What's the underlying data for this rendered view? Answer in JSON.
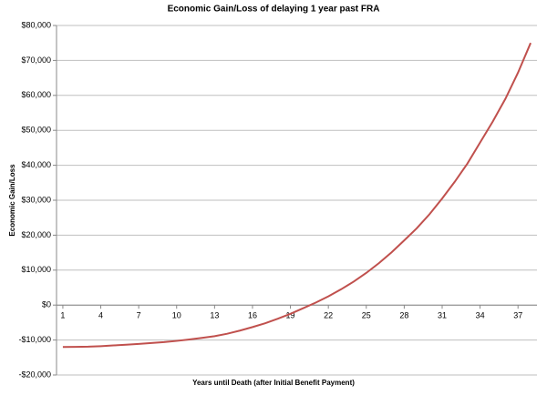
{
  "chart_data": {
    "type": "line",
    "title": "Economic Gain/Loss of delaying 1 year past FRA",
    "x_label": "Years until Death (after Initial Benefit Payment)",
    "y_label": "Economic Gain/Loss",
    "x": [
      1,
      2,
      3,
      4,
      5,
      6,
      7,
      8,
      9,
      10,
      11,
      12,
      13,
      14,
      15,
      16,
      17,
      18,
      19,
      20,
      21,
      22,
      23,
      24,
      25,
      26,
      27,
      28,
      29,
      30,
      31,
      32,
      33,
      34,
      35,
      36,
      37,
      38
    ],
    "series": [
      {
        "name": "Economic Gain/Loss",
        "color": "#c0504d",
        "values": [
          -12000,
          -11950,
          -11900,
          -11750,
          -11550,
          -11350,
          -11100,
          -10850,
          -10600,
          -10250,
          -9850,
          -9400,
          -8900,
          -8200,
          -7300,
          -6300,
          -5200,
          -3900,
          -2500,
          -900,
          700,
          2500,
          4500,
          6700,
          9200,
          12000,
          15100,
          18500,
          22000,
          26000,
          30500,
          35300,
          40500,
          46500,
          52500,
          59000,
          66500,
          75000
        ]
      }
    ],
    "xlim": [
      0.5,
      38.5
    ],
    "xticks": [
      1,
      4,
      7,
      10,
      13,
      16,
      19,
      22,
      25,
      28,
      31,
      34,
      37
    ],
    "ylim": [
      -20000,
      80000
    ],
    "yticks": [
      {
        "value": -20000,
        "label": "-$20,000"
      },
      {
        "value": -10000,
        "label": "-$10,000"
      },
      {
        "value": 0,
        "label": "$0"
      },
      {
        "value": 10000,
        "label": "$10,000"
      },
      {
        "value": 20000,
        "label": "$20,000"
      },
      {
        "value": 30000,
        "label": "$30,000"
      },
      {
        "value": 40000,
        "label": "$40,000"
      },
      {
        "value": 50000,
        "label": "$50,000"
      },
      {
        "value": 60000,
        "label": "$60,000"
      },
      {
        "value": 70000,
        "label": "$70,000"
      },
      {
        "value": 80000,
        "label": "$80,000"
      }
    ],
    "grid": true
  }
}
